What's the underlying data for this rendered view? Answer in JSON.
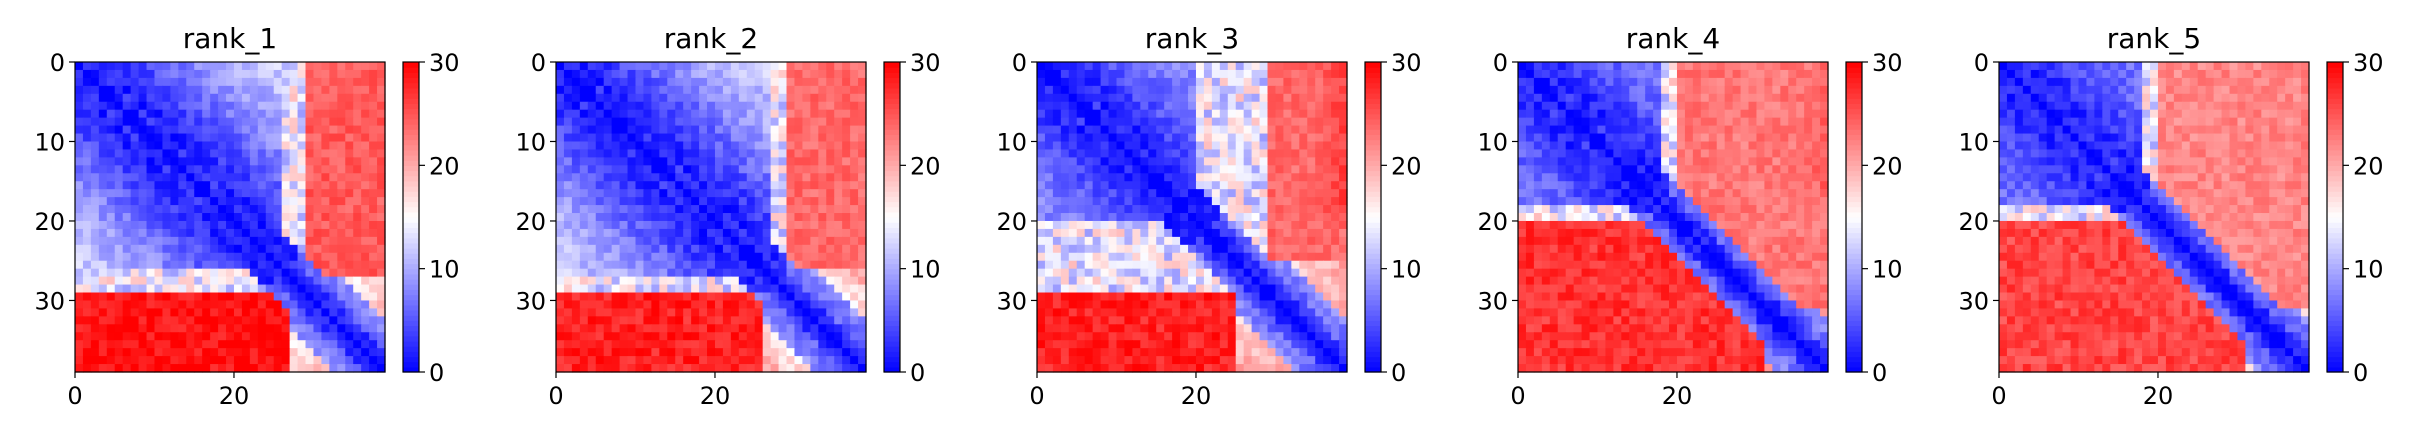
{
  "chart_data": [
    {
      "type": "heatmap",
      "title": "rank_1",
      "n": 39,
      "xticks": [
        0,
        20
      ],
      "yticks": [
        0,
        10,
        20,
        30
      ],
      "colorbar": {
        "min": 0,
        "max": 30,
        "ticks": [
          0,
          10,
          20,
          30
        ],
        "colormap": "bwr"
      },
      "matrix_profile": {
        "diagonal_value": 0,
        "upper_left_block": {
          "rows": [
            0,
            27
          ],
          "cols": [
            0,
            27
          ],
          "value_range": [
            4,
            12
          ]
        },
        "lower_left_block": {
          "rows": [
            29,
            38
          ],
          "cols": [
            0,
            26
          ],
          "value": 29
        },
        "transition_rows": [
          26,
          28
        ],
        "right_edge_value": 22
      }
    },
    {
      "type": "heatmap",
      "title": "rank_2",
      "n": 39,
      "xticks": [
        0,
        20
      ],
      "yticks": [
        0,
        10,
        20,
        30
      ],
      "colorbar": {
        "min": 0,
        "max": 30,
        "ticks": [
          0,
          10,
          20,
          30
        ],
        "colormap": "bwr"
      },
      "matrix_profile": {
        "diagonal_value": 0,
        "upper_left_block": {
          "rows": [
            0,
            28
          ],
          "cols": [
            0,
            28
          ],
          "value_range": [
            4,
            12
          ]
        },
        "lower_left_block": {
          "rows": [
            29,
            38
          ],
          "cols": [
            0,
            25
          ],
          "value": 28
        },
        "transition_rows": [
          27,
          29
        ],
        "right_edge_value": 20
      }
    },
    {
      "type": "heatmap",
      "title": "rank_3",
      "n": 39,
      "xticks": [
        0,
        20
      ],
      "yticks": [
        0,
        10,
        20,
        30
      ],
      "colorbar": {
        "min": 0,
        "max": 30,
        "ticks": [
          0,
          10,
          20,
          30
        ],
        "colormap": "bwr"
      },
      "matrix_profile": {
        "diagonal_value": 0,
        "upper_left_block": {
          "rows": [
            0,
            20
          ],
          "cols": [
            0,
            22
          ],
          "value_range": [
            3,
            10
          ]
        },
        "lower_left_block": {
          "rows": [
            29,
            38
          ],
          "cols": [
            0,
            24
          ],
          "value": 28
        },
        "transition_rows": [
          20,
          28
        ],
        "right_edge_value": 26
      }
    },
    {
      "type": "heatmap",
      "title": "rank_4",
      "n": 39,
      "xticks": [
        0,
        20
      ],
      "yticks": [
        0,
        10,
        20,
        30
      ],
      "colorbar": {
        "min": 0,
        "max": 30,
        "ticks": [
          0,
          10,
          20,
          30
        ],
        "colormap": "bwr"
      },
      "matrix_profile": {
        "diagonal_value": 0,
        "upper_left_block": {
          "rows": [
            0,
            18
          ],
          "cols": [
            0,
            18
          ],
          "value_range": [
            3,
            9
          ]
        },
        "lower_left_block": {
          "rows": [
            20,
            38
          ],
          "cols": [
            0,
            30
          ],
          "value": 27
        },
        "transition_rows": [
          18,
          21
        ],
        "right_edge_value": 24
      }
    },
    {
      "type": "heatmap",
      "title": "rank_5",
      "n": 39,
      "xticks": [
        0,
        20
      ],
      "yticks": [
        0,
        10,
        20,
        30
      ],
      "colorbar": {
        "min": 0,
        "max": 30,
        "ticks": [
          0,
          10,
          20,
          30
        ],
        "colormap": "bwr"
      },
      "matrix_profile": {
        "diagonal_value": 0,
        "upper_left_block": {
          "rows": [
            0,
            18
          ],
          "cols": [
            0,
            18
          ],
          "value_range": [
            3,
            9
          ]
        },
        "lower_left_block": {
          "rows": [
            20,
            38
          ],
          "cols": [
            0,
            30
          ],
          "value": 26
        },
        "transition_rows": [
          18,
          21
        ],
        "right_edge_value": 22
      }
    }
  ]
}
